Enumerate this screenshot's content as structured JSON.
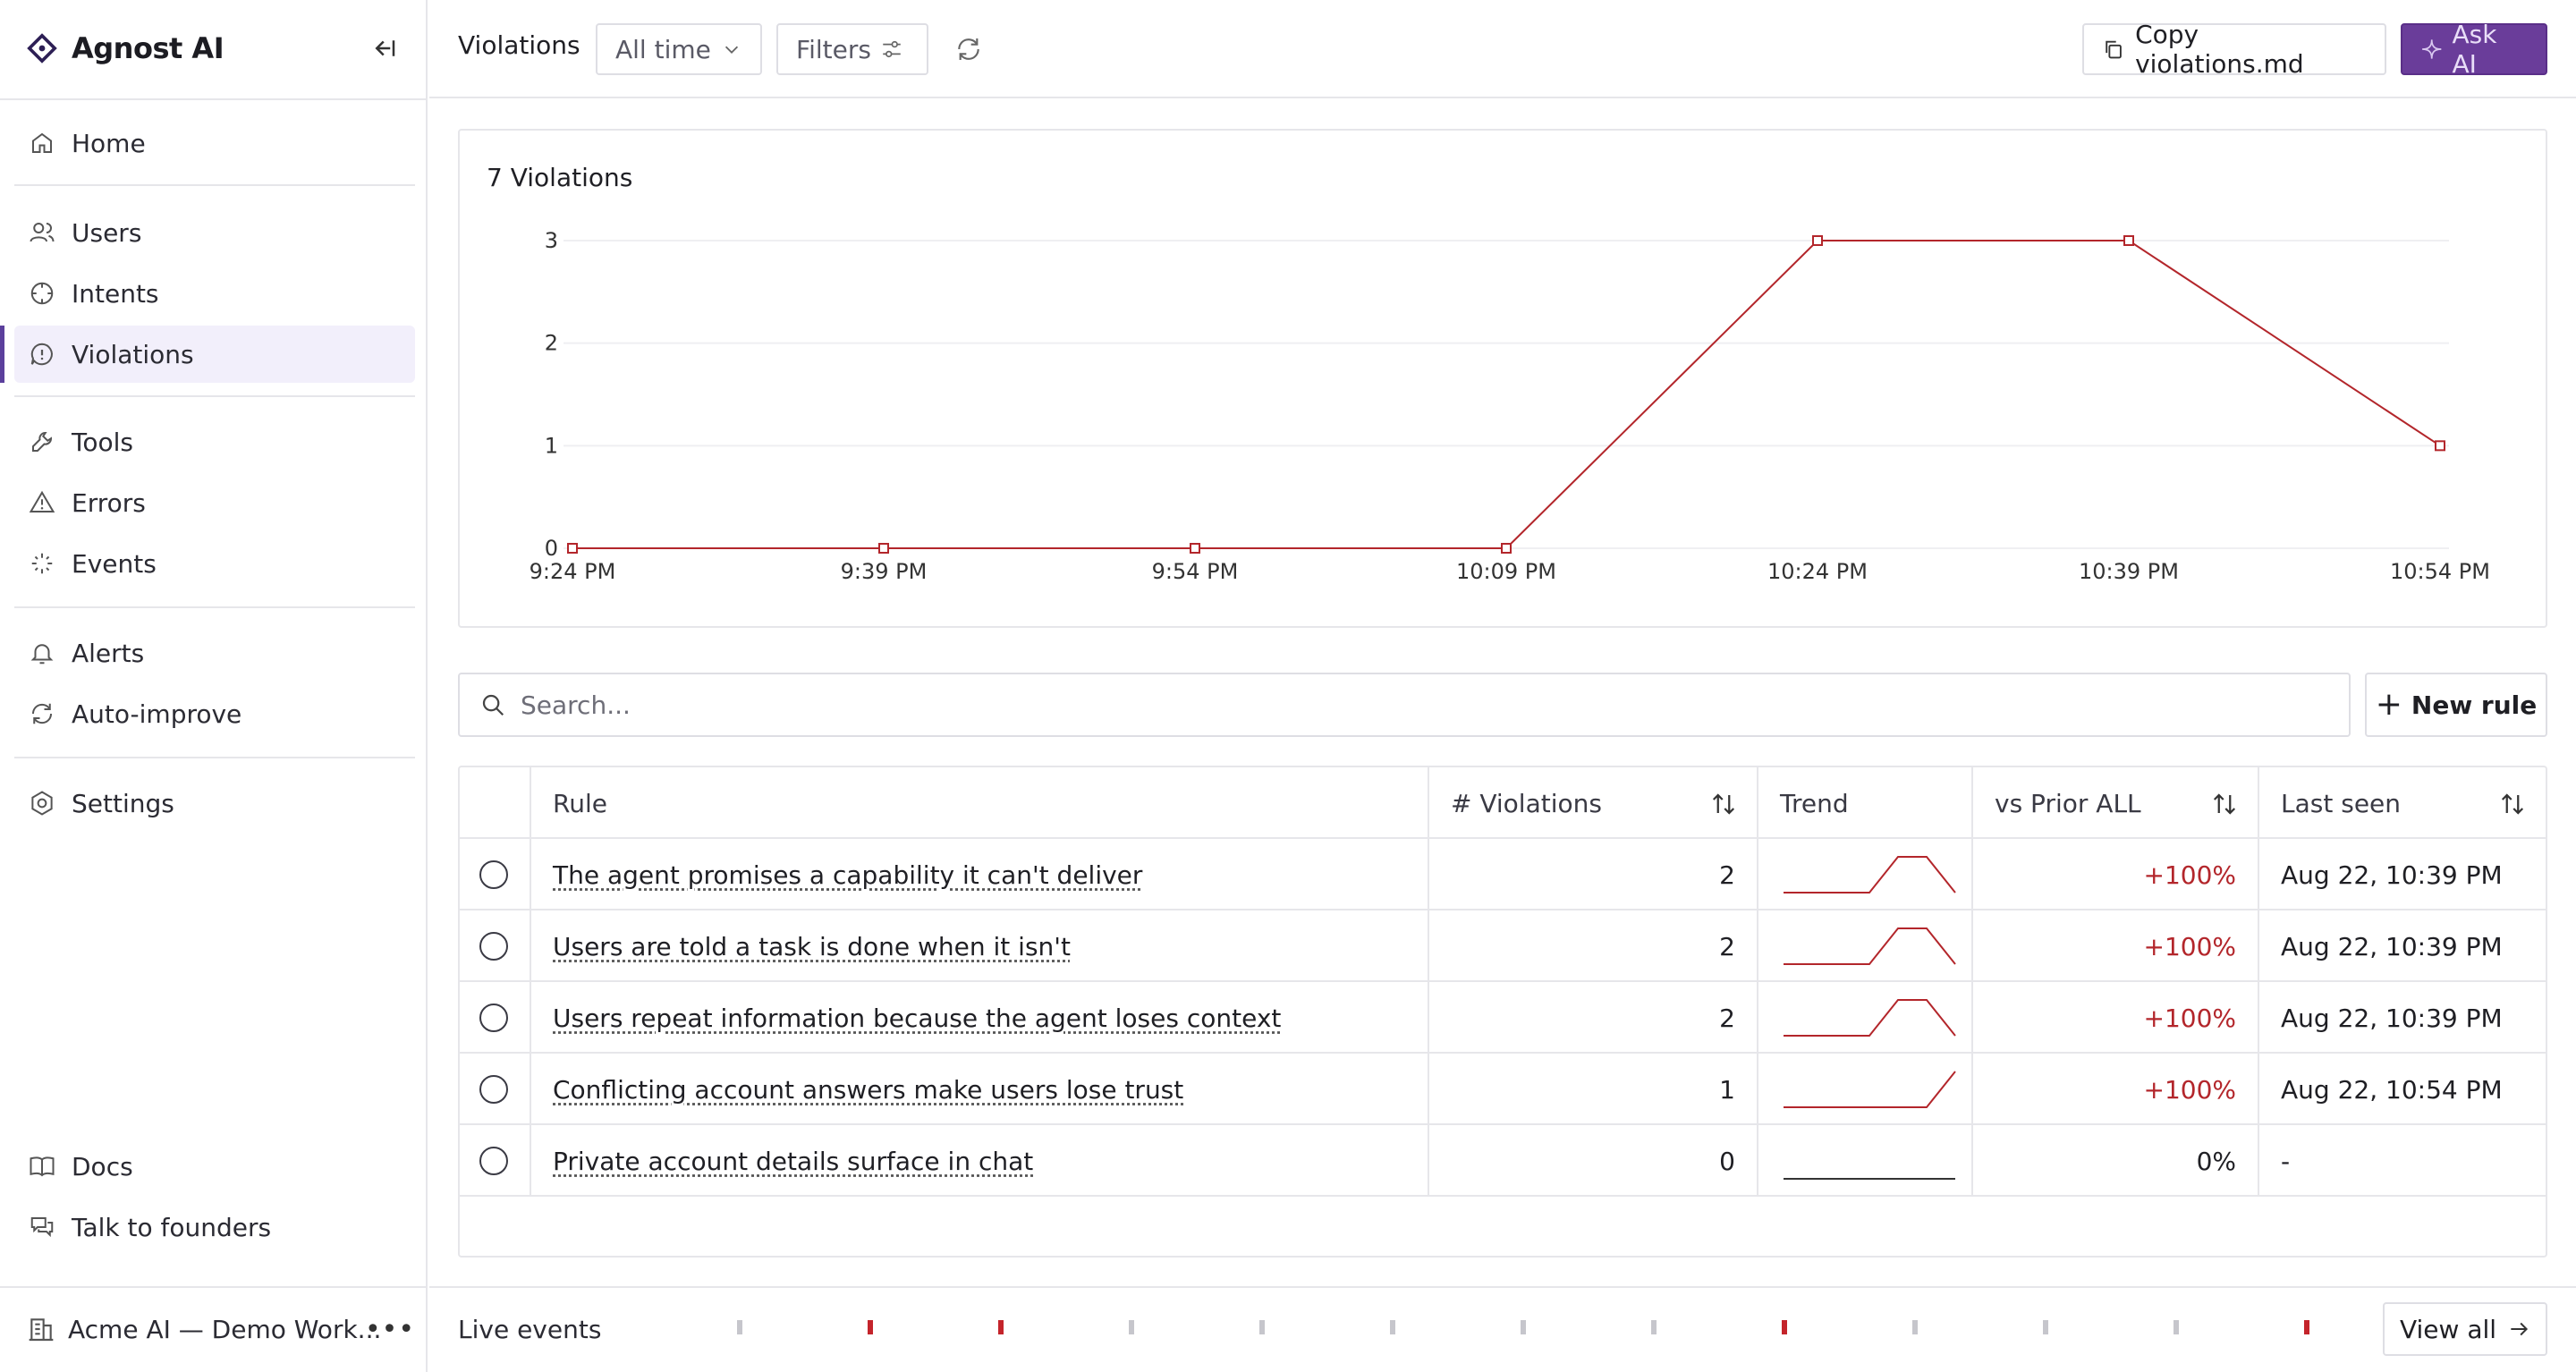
{
  "brand": {
    "name": "Agnost AI"
  },
  "sidebar": {
    "items": [
      {
        "label": "Home",
        "icon": "home-icon"
      },
      {
        "label": "Users",
        "icon": "users-icon"
      },
      {
        "label": "Intents",
        "icon": "intents-icon"
      },
      {
        "label": "Violations",
        "icon": "violations-icon",
        "active": true
      },
      {
        "label": "Tools",
        "icon": "wrench-icon"
      },
      {
        "label": "Errors",
        "icon": "warning-icon"
      },
      {
        "label": "Events",
        "icon": "sparkle-icon"
      },
      {
        "label": "Alerts",
        "icon": "bell-icon"
      },
      {
        "label": "Auto-improve",
        "icon": "refresh-icon"
      },
      {
        "label": "Settings",
        "icon": "gear-icon"
      },
      {
        "label": "Docs",
        "icon": "book-icon"
      },
      {
        "label": "Talk to founders",
        "icon": "chat-icon"
      }
    ],
    "workspace": "Acme AI — Demo Work..."
  },
  "topbar": {
    "title": "Violations",
    "time_range": "All time",
    "filters": "Filters",
    "copy": "Copy violations.md",
    "ask_ai": "Ask AI"
  },
  "chart_data": {
    "type": "line",
    "title": "7 Violations",
    "x": [
      "9:24 PM",
      "9:39 PM",
      "9:54 PM",
      "10:09 PM",
      "10:24 PM",
      "10:39 PM",
      "10:54 PM"
    ],
    "values": [
      0,
      0,
      0,
      0,
      3,
      3,
      1
    ],
    "yticks": [
      0,
      1,
      2,
      3
    ],
    "ylim": [
      0,
      3
    ],
    "grid": true,
    "color": "#b3262b"
  },
  "search": {
    "placeholder": "Search..."
  },
  "new_rule": "New rule",
  "table": {
    "headers": {
      "rule": "Rule",
      "violations": "# Violations",
      "trend": "Trend",
      "vs_prior": "vs Prior ALL",
      "last_seen": "Last seen"
    },
    "rows": [
      {
        "rule": "The agent promises a capability it can't deliver",
        "count": "2",
        "trend": [
          0,
          0,
          0,
          0,
          1,
          1,
          0
        ],
        "vs_prior": "+100%",
        "last_seen": "Aug 22, 10:39 PM"
      },
      {
        "rule": "Users are told a task is done when it isn't",
        "count": "2",
        "trend": [
          0,
          0,
          0,
          0,
          1,
          1,
          0
        ],
        "vs_prior": "+100%",
        "last_seen": "Aug 22, 10:39 PM"
      },
      {
        "rule": "Users repeat information because the agent loses context",
        "count": "2",
        "trend": [
          0,
          0,
          0,
          0,
          1,
          1,
          0
        ],
        "vs_prior": "+100%",
        "last_seen": "Aug 22, 10:39 PM"
      },
      {
        "rule": "Conflicting account answers make users lose trust",
        "count": "1",
        "trend": [
          0,
          0,
          0,
          0,
          0,
          0,
          1
        ],
        "vs_prior": "+100%",
        "last_seen": "Aug 22, 10:54 PM"
      },
      {
        "rule": "Private account details surface in chat",
        "count": "0",
        "trend": [
          0,
          0,
          0,
          0,
          0,
          0,
          0
        ],
        "vs_prior": "0%",
        "last_seen": "-"
      }
    ]
  },
  "live_events": {
    "label": "Live events",
    "ticks": [
      "gray",
      "red",
      "red",
      "gray",
      "gray",
      "gray",
      "gray",
      "gray",
      "red",
      "gray",
      "gray",
      "gray",
      "red"
    ],
    "view_all": "View all"
  },
  "colors": {
    "accent": "#6a3d9a",
    "danger": "#b3262b",
    "active_bg": "#f2effb"
  }
}
